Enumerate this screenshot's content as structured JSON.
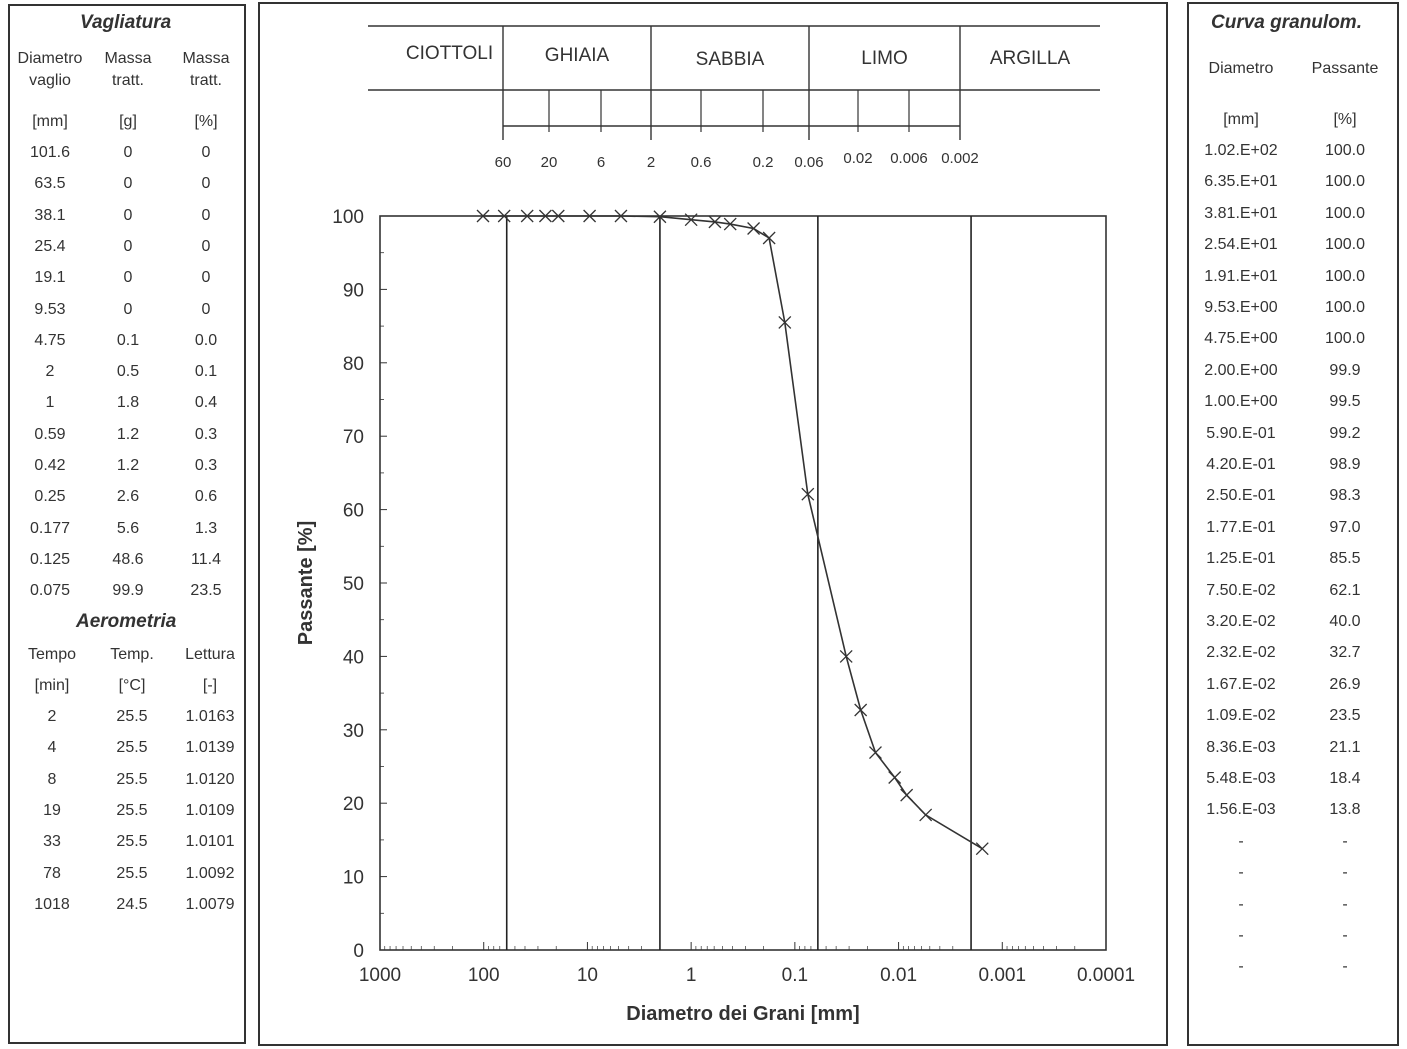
{
  "vagliatura": {
    "title": "Vagliatura",
    "headers": [
      "Diametro vaglio",
      "Massa tratt.",
      "Massa tratt."
    ],
    "units": [
      "[mm]",
      "[g]",
      "[%]"
    ],
    "rows": [
      [
        "101.6",
        "0",
        "0"
      ],
      [
        "63.5",
        "0",
        "0"
      ],
      [
        "38.1",
        "0",
        "0"
      ],
      [
        "25.4",
        "0",
        "0"
      ],
      [
        "19.1",
        "0",
        "0"
      ],
      [
        "9.53",
        "0",
        "0"
      ],
      [
        "4.75",
        "0.1",
        "0.0"
      ],
      [
        "2",
        "0.5",
        "0.1"
      ],
      [
        "1",
        "1.8",
        "0.4"
      ],
      [
        "0.59",
        "1.2",
        "0.3"
      ],
      [
        "0.42",
        "1.2",
        "0.3"
      ],
      [
        "0.25",
        "2.6",
        "0.6"
      ],
      [
        "0.177",
        "5.6",
        "1.3"
      ],
      [
        "0.125",
        "48.6",
        "11.4"
      ],
      [
        "0.075",
        "99.9",
        "23.5"
      ]
    ]
  },
  "aerometria": {
    "title": "Aerometria",
    "headers": [
      "Tempo",
      "Temp.",
      "Lettura"
    ],
    "units": [
      "[min]",
      "[°C]",
      "[-]"
    ],
    "rows": [
      [
        "2",
        "25.5",
        "1.0163"
      ],
      [
        "4",
        "25.5",
        "1.0139"
      ],
      [
        "8",
        "25.5",
        "1.0120"
      ],
      [
        "19",
        "25.5",
        "1.0109"
      ],
      [
        "33",
        "25.5",
        "1.0101"
      ],
      [
        "78",
        "25.5",
        "1.0092"
      ],
      [
        "1018",
        "24.5",
        "1.0079"
      ]
    ]
  },
  "curva": {
    "title": "Curva granulom.",
    "headers": [
      "Diametro",
      "Passante"
    ],
    "units": [
      "[mm]",
      "[%]"
    ],
    "rows": [
      [
        "1.02.E+02",
        "100.0"
      ],
      [
        "6.35.E+01",
        "100.0"
      ],
      [
        "3.81.E+01",
        "100.0"
      ],
      [
        "2.54.E+01",
        "100.0"
      ],
      [
        "1.91.E+01",
        "100.0"
      ],
      [
        "9.53.E+00",
        "100.0"
      ],
      [
        "4.75.E+00",
        "100.0"
      ],
      [
        "2.00.E+00",
        "99.9"
      ],
      [
        "1.00.E+00",
        "99.5"
      ],
      [
        "5.90.E-01",
        "99.2"
      ],
      [
        "4.20.E-01",
        "98.9"
      ],
      [
        "2.50.E-01",
        "98.3"
      ],
      [
        "1.77.E-01",
        "97.0"
      ],
      [
        "1.25.E-01",
        "85.5"
      ],
      [
        "7.50.E-02",
        "62.1"
      ],
      [
        "3.20.E-02",
        "40.0"
      ],
      [
        "2.32.E-02",
        "32.7"
      ],
      [
        "1.67.E-02",
        "26.9"
      ],
      [
        "1.09.E-02",
        "23.5"
      ],
      [
        "8.36.E-03",
        "21.1"
      ],
      [
        "5.48.E-03",
        "18.4"
      ],
      [
        "1.56.E-03",
        "13.8"
      ],
      [
        "-",
        "-"
      ],
      [
        "-",
        "-"
      ],
      [
        "-",
        "-"
      ],
      [
        "-",
        "-"
      ],
      [
        "-",
        "-"
      ]
    ]
  },
  "classification": {
    "bands": [
      "CIOTTOLI",
      "GHIAIA",
      "SABBIA",
      "LIMO",
      "ARGILLA"
    ],
    "band_bounds_mm": [
      60,
      2,
      0.06,
      0.002
    ],
    "sub_ticks_mm": [
      60,
      20,
      6,
      2,
      0.6,
      0.2,
      0.06,
      0.02,
      0.006,
      0.002
    ],
    "sub_tick_labels": [
      "60",
      "20",
      "6",
      "2",
      "0.6",
      "0.2",
      "0.06",
      "0.02",
      "0.006",
      "0.002"
    ]
  },
  "chart_data": {
    "type": "scatter",
    "xlabel": "Diametro dei Grani [mm]",
    "ylabel": "Passante [%]",
    "x_scale": "log",
    "x_reversed": true,
    "xlim": [
      1000,
      0.0001
    ],
    "ylim": [
      0,
      100
    ],
    "x_ticks": [
      1000,
      100,
      10,
      1,
      0.1,
      0.01,
      0.001,
      0.0001
    ],
    "x_tick_labels": [
      "1000",
      "100",
      "10",
      "1",
      "0.1",
      "0.01",
      "0.001",
      "0.0001"
    ],
    "y_ticks": [
      0,
      10,
      20,
      30,
      40,
      50,
      60,
      70,
      80,
      90,
      100
    ],
    "y_tick_labels": [
      "0",
      "10",
      "20",
      "30",
      "40",
      "50",
      "60",
      "70",
      "80",
      "90",
      "100"
    ],
    "vertical_lines_mm": [
      60,
      2,
      0.06,
      0.002
    ],
    "series": [
      {
        "x": [
          101.6,
          63.5,
          38.1,
          25.4,
          19.1,
          9.53,
          4.75,
          2,
          1,
          0.59,
          0.42,
          0.25,
          0.177,
          0.125,
          0.075,
          0.032,
          0.0232,
          0.0167,
          0.0109,
          0.00836,
          0.00548,
          0.00156
        ],
        "y": [
          100.0,
          100.0,
          100.0,
          100.0,
          100.0,
          100.0,
          100.0,
          99.9,
          99.5,
          99.2,
          98.9,
          98.3,
          97.0,
          85.5,
          62.1,
          40.0,
          32.7,
          26.9,
          23.5,
          21.1,
          18.4,
          13.8
        ]
      }
    ],
    "marker": "x",
    "line_color": "#333333"
  }
}
